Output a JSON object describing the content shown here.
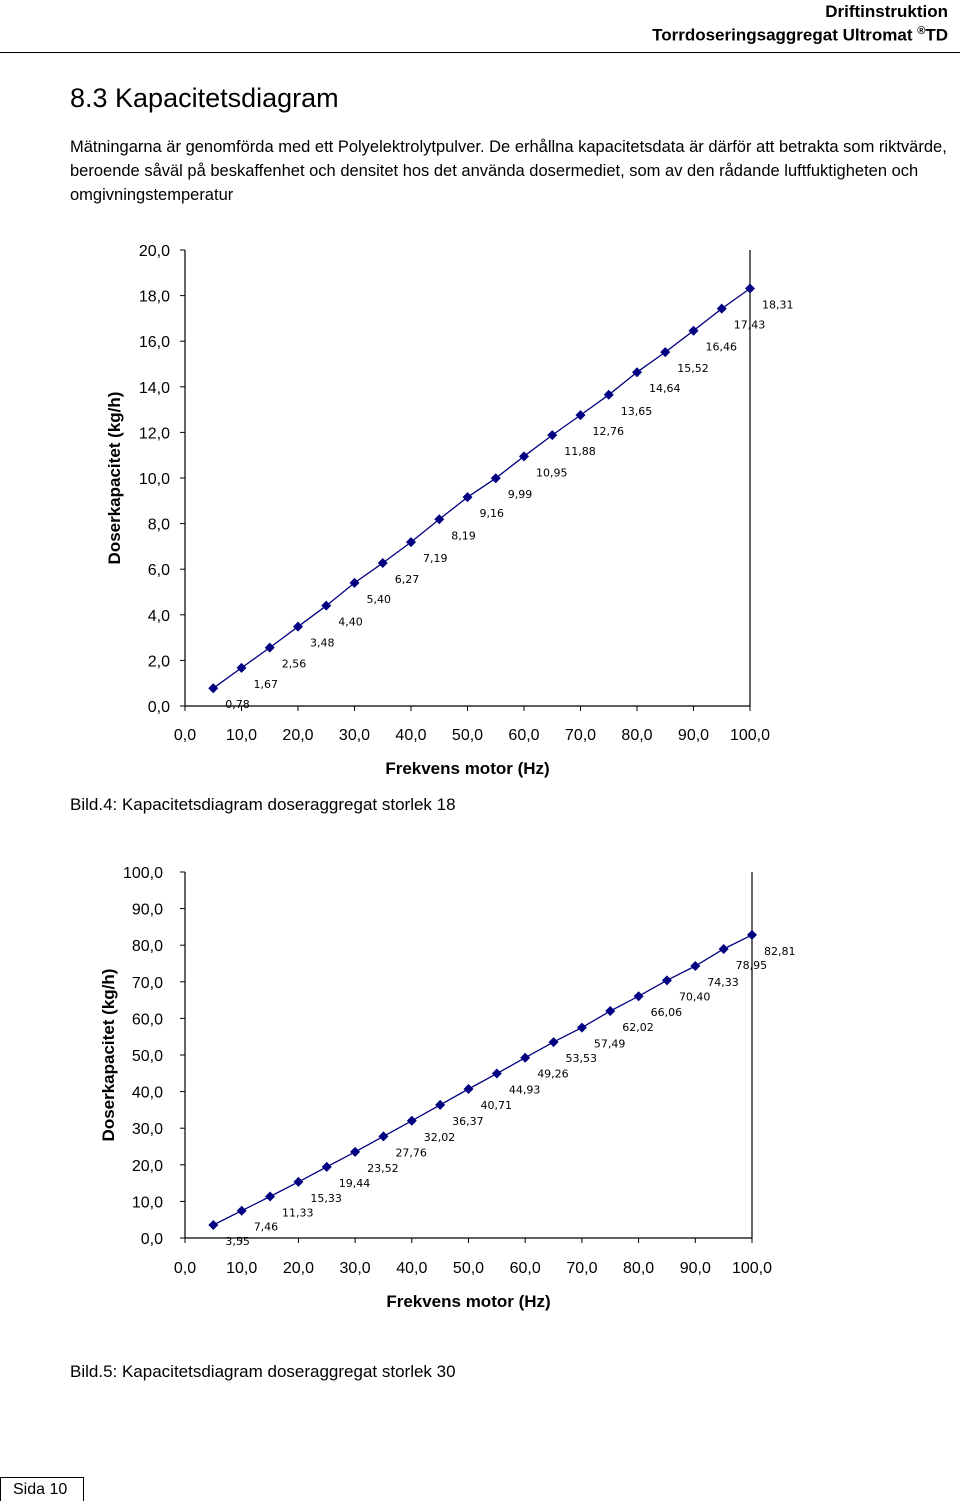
{
  "header": {
    "title": "Driftinstruktion",
    "subtitle_prefix": "Torrdoseringsaggregat Ultromat",
    "subtitle_symbol": "®",
    "subtitle_suffix": "TD"
  },
  "section": {
    "heading": "8.3 Kapacitetsdiagram",
    "intro": "Mätningarna är genomförda med ett Polyelektrolytpulver. De erhållna kapacitetsdata är därför att betrakta som riktvärde, beroende såväl på beskaffenhet och densitet hos det använda dosermediet, som av den rådande luftfuktigheten och omgivningstemperatur"
  },
  "chart_data": [
    {
      "type": "line",
      "xlabel": "Frekvens motor (Hz)",
      "ylabel": "Doserkapacitet (kg/h)",
      "xlim": [
        0,
        100
      ],
      "ylim": [
        0,
        20
      ],
      "x_ticks": [
        "0,0",
        "10,0",
        "20,0",
        "30,0",
        "40,0",
        "50,0",
        "60,0",
        "70,0",
        "80,0",
        "90,0",
        "100,0"
      ],
      "y_ticks": [
        "0,0",
        "2,0",
        "4,0",
        "6,0",
        "8,0",
        "10,0",
        "12,0",
        "14,0",
        "16,0",
        "18,0",
        "20,0"
      ],
      "grid": false,
      "marker_color": "#000080",
      "x": [
        5,
        10,
        15,
        20,
        25,
        30,
        35,
        40,
        45,
        50,
        55,
        60,
        65,
        70,
        75,
        80,
        85,
        90,
        95,
        100
      ],
      "values": [
        0.78,
        1.67,
        2.56,
        3.48,
        4.4,
        5.4,
        6.27,
        7.19,
        8.19,
        9.16,
        9.99,
        10.95,
        11.88,
        12.76,
        13.65,
        14.64,
        15.52,
        16.46,
        17.43,
        18.31
      ],
      "labels": [
        "0,78",
        "1,67",
        "2,56",
        "3,48",
        "4,40",
        "5,40",
        "6,27",
        "7,19",
        "8,19",
        "9,16",
        "9,99",
        "10,95",
        "11,88",
        "12,76",
        "13,65",
        "14,64",
        "15,52",
        "16,46",
        "17,43",
        "18,31"
      ],
      "caption": "Bild.4: Kapacitetsdiagram doseraggregat storlek 18"
    },
    {
      "type": "line",
      "xlabel": "Frekvens motor (Hz)",
      "ylabel": "Doserkapacitet (kg/h)",
      "xlim": [
        0,
        100
      ],
      "ylim": [
        0,
        100
      ],
      "x_ticks": [
        "0,0",
        "10,0",
        "20,0",
        "30,0",
        "40,0",
        "50,0",
        "60,0",
        "70,0",
        "80,0",
        "90,0",
        "100,0"
      ],
      "y_ticks": [
        "0,0",
        "10,0",
        "20,0",
        "30,0",
        "40,0",
        "50,0",
        "60,0",
        "70,0",
        "80,0",
        "90,0",
        "100,0"
      ],
      "grid": false,
      "marker_color": "#000080",
      "x": [
        5,
        10,
        15,
        20,
        25,
        30,
        35,
        40,
        45,
        50,
        55,
        60,
        65,
        70,
        75,
        80,
        85,
        90,
        95,
        100
      ],
      "values": [
        3.55,
        7.46,
        11.33,
        15.33,
        19.44,
        23.52,
        27.76,
        32.02,
        36.37,
        40.71,
        44.93,
        49.26,
        53.53,
        57.49,
        62.02,
        66.06,
        70.4,
        74.33,
        78.95,
        82.81
      ],
      "labels": [
        "3,55",
        "7,46",
        "11,33",
        "15,33",
        "19,44",
        "23,52",
        "27,76",
        "32,02",
        "36,37",
        "40,71",
        "44,93",
        "49,26",
        "53,53",
        "57,49",
        "62,02",
        "66,06",
        "70,40",
        "74,33",
        "78,95",
        "82,81"
      ],
      "caption": "Bild.5: Kapacitetsdiagram doseraggregat storlek 30"
    }
  ],
  "footer": {
    "page": "Sida  10"
  }
}
